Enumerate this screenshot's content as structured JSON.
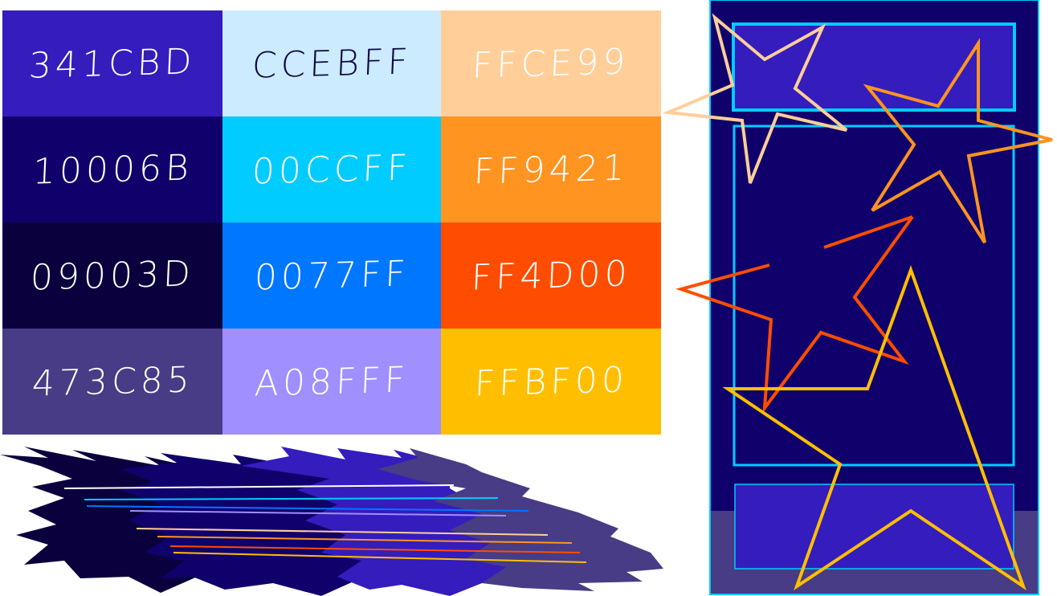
{
  "palette": {
    "swatches": [
      {
        "label": "341CBD",
        "bg": "#341CBD",
        "fg": "#ffffff"
      },
      {
        "label": "CCEBFF",
        "bg": "#CCEBFF",
        "fg": "#0c0846"
      },
      {
        "label": "FFCE99",
        "bg": "#FFCE99",
        "fg": "#ffffff"
      },
      {
        "label": "10006B",
        "bg": "#10006B",
        "fg": "#ffffff"
      },
      {
        "label": "00CCFF",
        "bg": "#00CCFF",
        "fg": "#ffffff"
      },
      {
        "label": "FF9421",
        "bg": "#FF9421",
        "fg": "#ffffff"
      },
      {
        "label": "09003D",
        "bg": "#09003D",
        "fg": "#ffffff"
      },
      {
        "label": "0077FF",
        "bg": "#0077FF",
        "fg": "#ffffff"
      },
      {
        "label": "FF4D00",
        "bg": "#FF4D00",
        "fg": "#ffffff"
      },
      {
        "label": "473C85",
        "bg": "#473C85",
        "fg": "#ffffff"
      },
      {
        "label": "A08FFF",
        "bg": "#A08FFF",
        "fg": "#ffffff"
      },
      {
        "label": "FFBF00",
        "bg": "#FFBF00",
        "fg": "#ffffff"
      }
    ]
  },
  "brush": {
    "colors": [
      "#09003D",
      "#10006B",
      "#341CBD",
      "#473C85"
    ],
    "line_colors": [
      "#FFFFFF",
      "#00CCFF",
      "#0077FF",
      "#A08FFF",
      "#FFCE99",
      "#FF9421",
      "#FF4D00",
      "#FFBF00"
    ]
  },
  "mockup": {
    "frame_bg": "#10006B",
    "footer_bg": "#473C85",
    "header_panel_bg": "#341CBD",
    "body_panel_bg": "#10006B",
    "bottom_panel_bg": "#341CBD",
    "outline_color": "#00CCFF",
    "star_colors": [
      "#FFCE99",
      "#FF9421",
      "#FF4D00",
      "#FFBF00"
    ]
  }
}
